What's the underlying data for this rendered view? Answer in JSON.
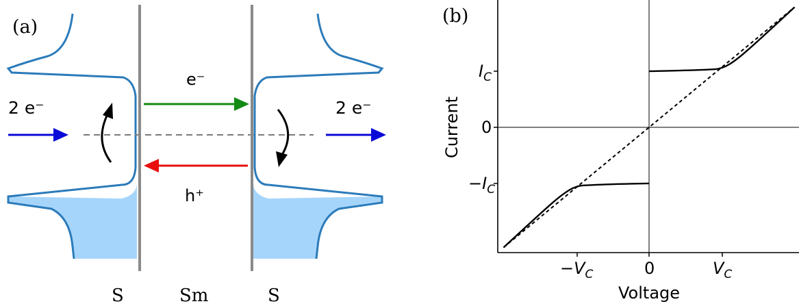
{
  "panel_a": {
    "label": "(a)",
    "left_pair_label": "2 e⁻",
    "right_pair_label": "2 e⁻",
    "electron_label": "e⁻",
    "hole_label": "h⁺",
    "region_left": "S",
    "region_middle": "Sm",
    "region_right": "S",
    "colors": {
      "dos_line": "#2b7bba",
      "filled": "#a6d5fb",
      "barrier": "#8a8a8a",
      "pair_arrow": "#0a0ad8",
      "electron_arrow": "#138a13",
      "hole_arrow": "#e80e0e",
      "dashed": "#7a7a7a"
    }
  },
  "panel_b": {
    "label": "(b)",
    "xlabel": "Voltage",
    "ylabel": "Current",
    "xticks": [
      "−V",
      "0",
      "V"
    ],
    "yticks": [
      "I",
      "0",
      "−I"
    ],
    "tick_subscript": "C"
  },
  "chart_data": {
    "type": "line",
    "xlabel": "Voltage",
    "ylabel": "Current",
    "xticklabels": [
      "-V_C",
      "0",
      "V_C"
    ],
    "yticklabels": [
      "I_C",
      "0",
      "-I_C"
    ],
    "series": [
      {
        "style": "solid",
        "x": [
          -2.0,
          -1.5,
          -1.2,
          -1.0,
          -0.8,
          -0.5,
          0.0,
          0.0,
          0.5,
          0.8,
          1.0,
          1.2,
          1.5,
          2.0
        ],
        "y": [
          -1.5,
          -1.08,
          -0.84,
          -0.73,
          -0.72,
          -0.71,
          -0.7,
          0.7,
          0.71,
          0.72,
          0.73,
          0.84,
          1.08,
          1.5
        ]
      },
      {
        "style": "dashed",
        "x": [
          -2.0,
          2.0
        ],
        "y": [
          -1.5,
          1.5
        ]
      }
    ]
  }
}
